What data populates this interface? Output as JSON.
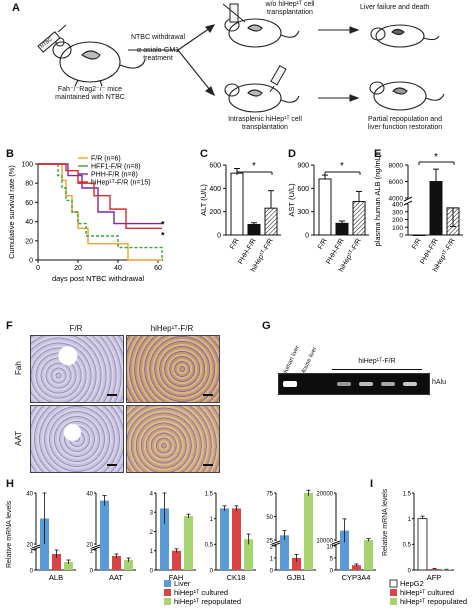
{
  "panel_a": {
    "label": "A",
    "mouse_label_line1": "Fah⁻/⁻Rag2⁻/⁻ mice",
    "mouse_label_line2": "maintained with NTBC",
    "syringe_label": "NTBC",
    "treatment_line1": "NTBC withdrawal",
    "treatment_line2": "α-asialo-GM1",
    "treatment_line3": "treatment",
    "top_branch_line1": "w/o hiHep¹ᵀ cell",
    "top_branch_line2": "transplantation",
    "top_outcome": "Liver failure and death",
    "bottom_branch_line1": "Intrasplenic hiHep¹ᵀ cell",
    "bottom_branch_line2": "transplantation",
    "bottom_outcome_line1": "Partial repopulation and",
    "bottom_outcome_line2": "liver function restoration"
  },
  "panel_b": {
    "label": "B",
    "ylabel": "Cumulative survival rate (%)",
    "xlabel": "days post NTBC withdrawal",
    "significance": "*"
  },
  "panel_c": {
    "label": "C",
    "ylabel": "ALT (U/L)",
    "significance": "*"
  },
  "panel_d": {
    "label": "D",
    "ylabel": "AST (U/L)",
    "significance": "*"
  },
  "panel_e": {
    "label": "E",
    "ylabel": "plasma human ALB (ng/mL)",
    "significance": "*"
  },
  "panel_f": {
    "label": "F",
    "col1": "F/R",
    "col2": "hiHep¹ᵀ-F/R",
    "row1": "Fah",
    "row2": "AAT"
  },
  "panel_g": {
    "label": "G",
    "lane1": "Human liver",
    "lane2": "Mouse liver",
    "group": "hiHep¹ᵀ-F/R",
    "band": "hAlu"
  },
  "panel_h": {
    "label": "H",
    "ylabel": "Relative mRNA levels",
    "legend": [
      "Liver",
      "hiHep¹ᵀ cultured",
      "hiHep¹ᵀ repopulated"
    ]
  },
  "panel_i": {
    "label": "I",
    "ylabel": "Relative mRNA levels",
    "legend": [
      "HepG2",
      "hiHep¹ᵀ cultured",
      "hiHep¹ᵀ repopulated"
    ]
  },
  "colors": {
    "FR": "#e6a530",
    "HFF1": "#3aa23a",
    "PHH": "#7a2a9a",
    "hiHep": "#d82a2a",
    "liver": "#5b9bd5",
    "cultured": "#d94545",
    "repopulated": "#a8d46f",
    "hepg2": "#ffffff"
  },
  "chart_data": [
    {
      "type": "line",
      "panel": "B",
      "title": "",
      "xlabel": "days post NTBC withdrawal",
      "ylabel": "Cumulative survival rate (%)",
      "xlim": [
        0,
        60
      ],
      "ylim": [
        0,
        100
      ],
      "xticks": [
        0,
        20,
        40,
        60
      ],
      "yticks": [
        0,
        20,
        40,
        60,
        80,
        100
      ],
      "series": [
        {
          "name": "F/R (n=6)",
          "x": [
            0,
            12,
            14,
            17,
            20,
            25,
            40,
            45,
            62
          ],
          "y": [
            100,
            83,
            67,
            50,
            33,
            17,
            17,
            0,
            0
          ]
        },
        {
          "name": "HFF1-F/R (n=8)",
          "x": [
            0,
            10,
            12,
            14,
            17,
            20,
            24,
            40,
            62
          ],
          "y": [
            100,
            88,
            75,
            62,
            50,
            38,
            25,
            13,
            0
          ]
        },
        {
          "name": "PHH-F/R (n=8)",
          "x": [
            0,
            15,
            22,
            30,
            38,
            62
          ],
          "y": [
            100,
            88,
            75,
            50,
            38,
            38
          ]
        },
        {
          "name": "hiHep¹ᵀ-F/R (n=15)",
          "x": [
            0,
            14,
            20,
            28,
            36,
            44,
            62
          ],
          "y": [
            100,
            93,
            80,
            67,
            53,
            33,
            33
          ]
        }
      ]
    },
    {
      "type": "bar",
      "panel": "C",
      "ylabel": "ALT (U/L)",
      "categories": [
        "F/R",
        "PHH-F/R",
        "hiHep¹ᵀ-F/R"
      ],
      "values": [
        530,
        90,
        230
      ],
      "errors": [
        40,
        15,
        150
      ],
      "ylim": [
        0,
        600
      ],
      "yticks": [
        0,
        200,
        400,
        600
      ]
    },
    {
      "type": "bar",
      "panel": "D",
      "ylabel": "AST (U/L)",
      "categories": [
        "F/R",
        "PHH-F/R",
        "hiHep¹ᵀ-F/R"
      ],
      "values": [
        720,
        150,
        430
      ],
      "errors": [
        50,
        30,
        130
      ],
      "ylim": [
        0,
        900
      ],
      "yticks": [
        0,
        300,
        600,
        900
      ]
    },
    {
      "type": "bar",
      "panel": "E",
      "ylabel": "plasma human ALB (ng/mL)",
      "categories": [
        "F/R",
        "PHH-F/R",
        "hiHep¹ᵀ-F/R"
      ],
      "values": [
        0,
        6000,
        350
      ],
      "errors": [
        0,
        1500,
        200
      ],
      "yticks": [
        0,
        100,
        200,
        300,
        400,
        4000,
        6000,
        8000
      ]
    },
    {
      "type": "bar",
      "panel": "H",
      "series_names": [
        "Liver",
        "hiHep¹ᵀ cultured",
        "hiHep¹ᵀ repopulated"
      ],
      "groups": [
        {
          "gene": "ALB",
          "values": [
            30,
            0.8,
            0.4
          ],
          "errors": [
            10,
            0.2,
            0.1
          ],
          "yticks": [
            0,
            1,
            20,
            40
          ]
        },
        {
          "gene": "AAT",
          "values": [
            37,
            0.7,
            0.5
          ],
          "errors": [
            2,
            0.1,
            0.1
          ],
          "yticks": [
            0,
            1,
            20,
            40
          ]
        },
        {
          "gene": "FAH",
          "values": [
            3.2,
            1.0,
            2.8
          ],
          "errors": [
            0.8,
            0.1,
            0.1
          ],
          "yticks": [
            0,
            1,
            2,
            3,
            4
          ]
        },
        {
          "gene": "CK18",
          "values": [
            1.2,
            1.2,
            0.6
          ],
          "errors": [
            0.05,
            0.05,
            0.1
          ],
          "yticks": [
            0,
            0.5,
            1.0,
            1.5
          ]
        },
        {
          "gene": "GJB1",
          "values": [
            30,
            1.0,
            75
          ],
          "errors": [
            5,
            0.3,
            3
          ],
          "yticks": [
            0,
            1,
            2,
            25,
            50,
            75
          ]
        },
        {
          "gene": "CYP3A4",
          "values": [
            12000,
            2,
            10000
          ],
          "errors": [
            2500,
            0.5,
            300
          ],
          "yticks": [
            0,
            5,
            10,
            10000,
            20000
          ]
        }
      ]
    },
    {
      "type": "bar",
      "panel": "I",
      "series_names": [
        "HepG2",
        "hiHep¹ᵀ cultured",
        "hiHep¹ᵀ repopulated"
      ],
      "groups": [
        {
          "gene": "AFP",
          "values": [
            1.0,
            0.02,
            0.01
          ],
          "errors": [
            0.05,
            0.01,
            0.005
          ],
          "yticks": [
            0,
            0.5,
            1.0,
            1.5
          ]
        }
      ]
    }
  ]
}
